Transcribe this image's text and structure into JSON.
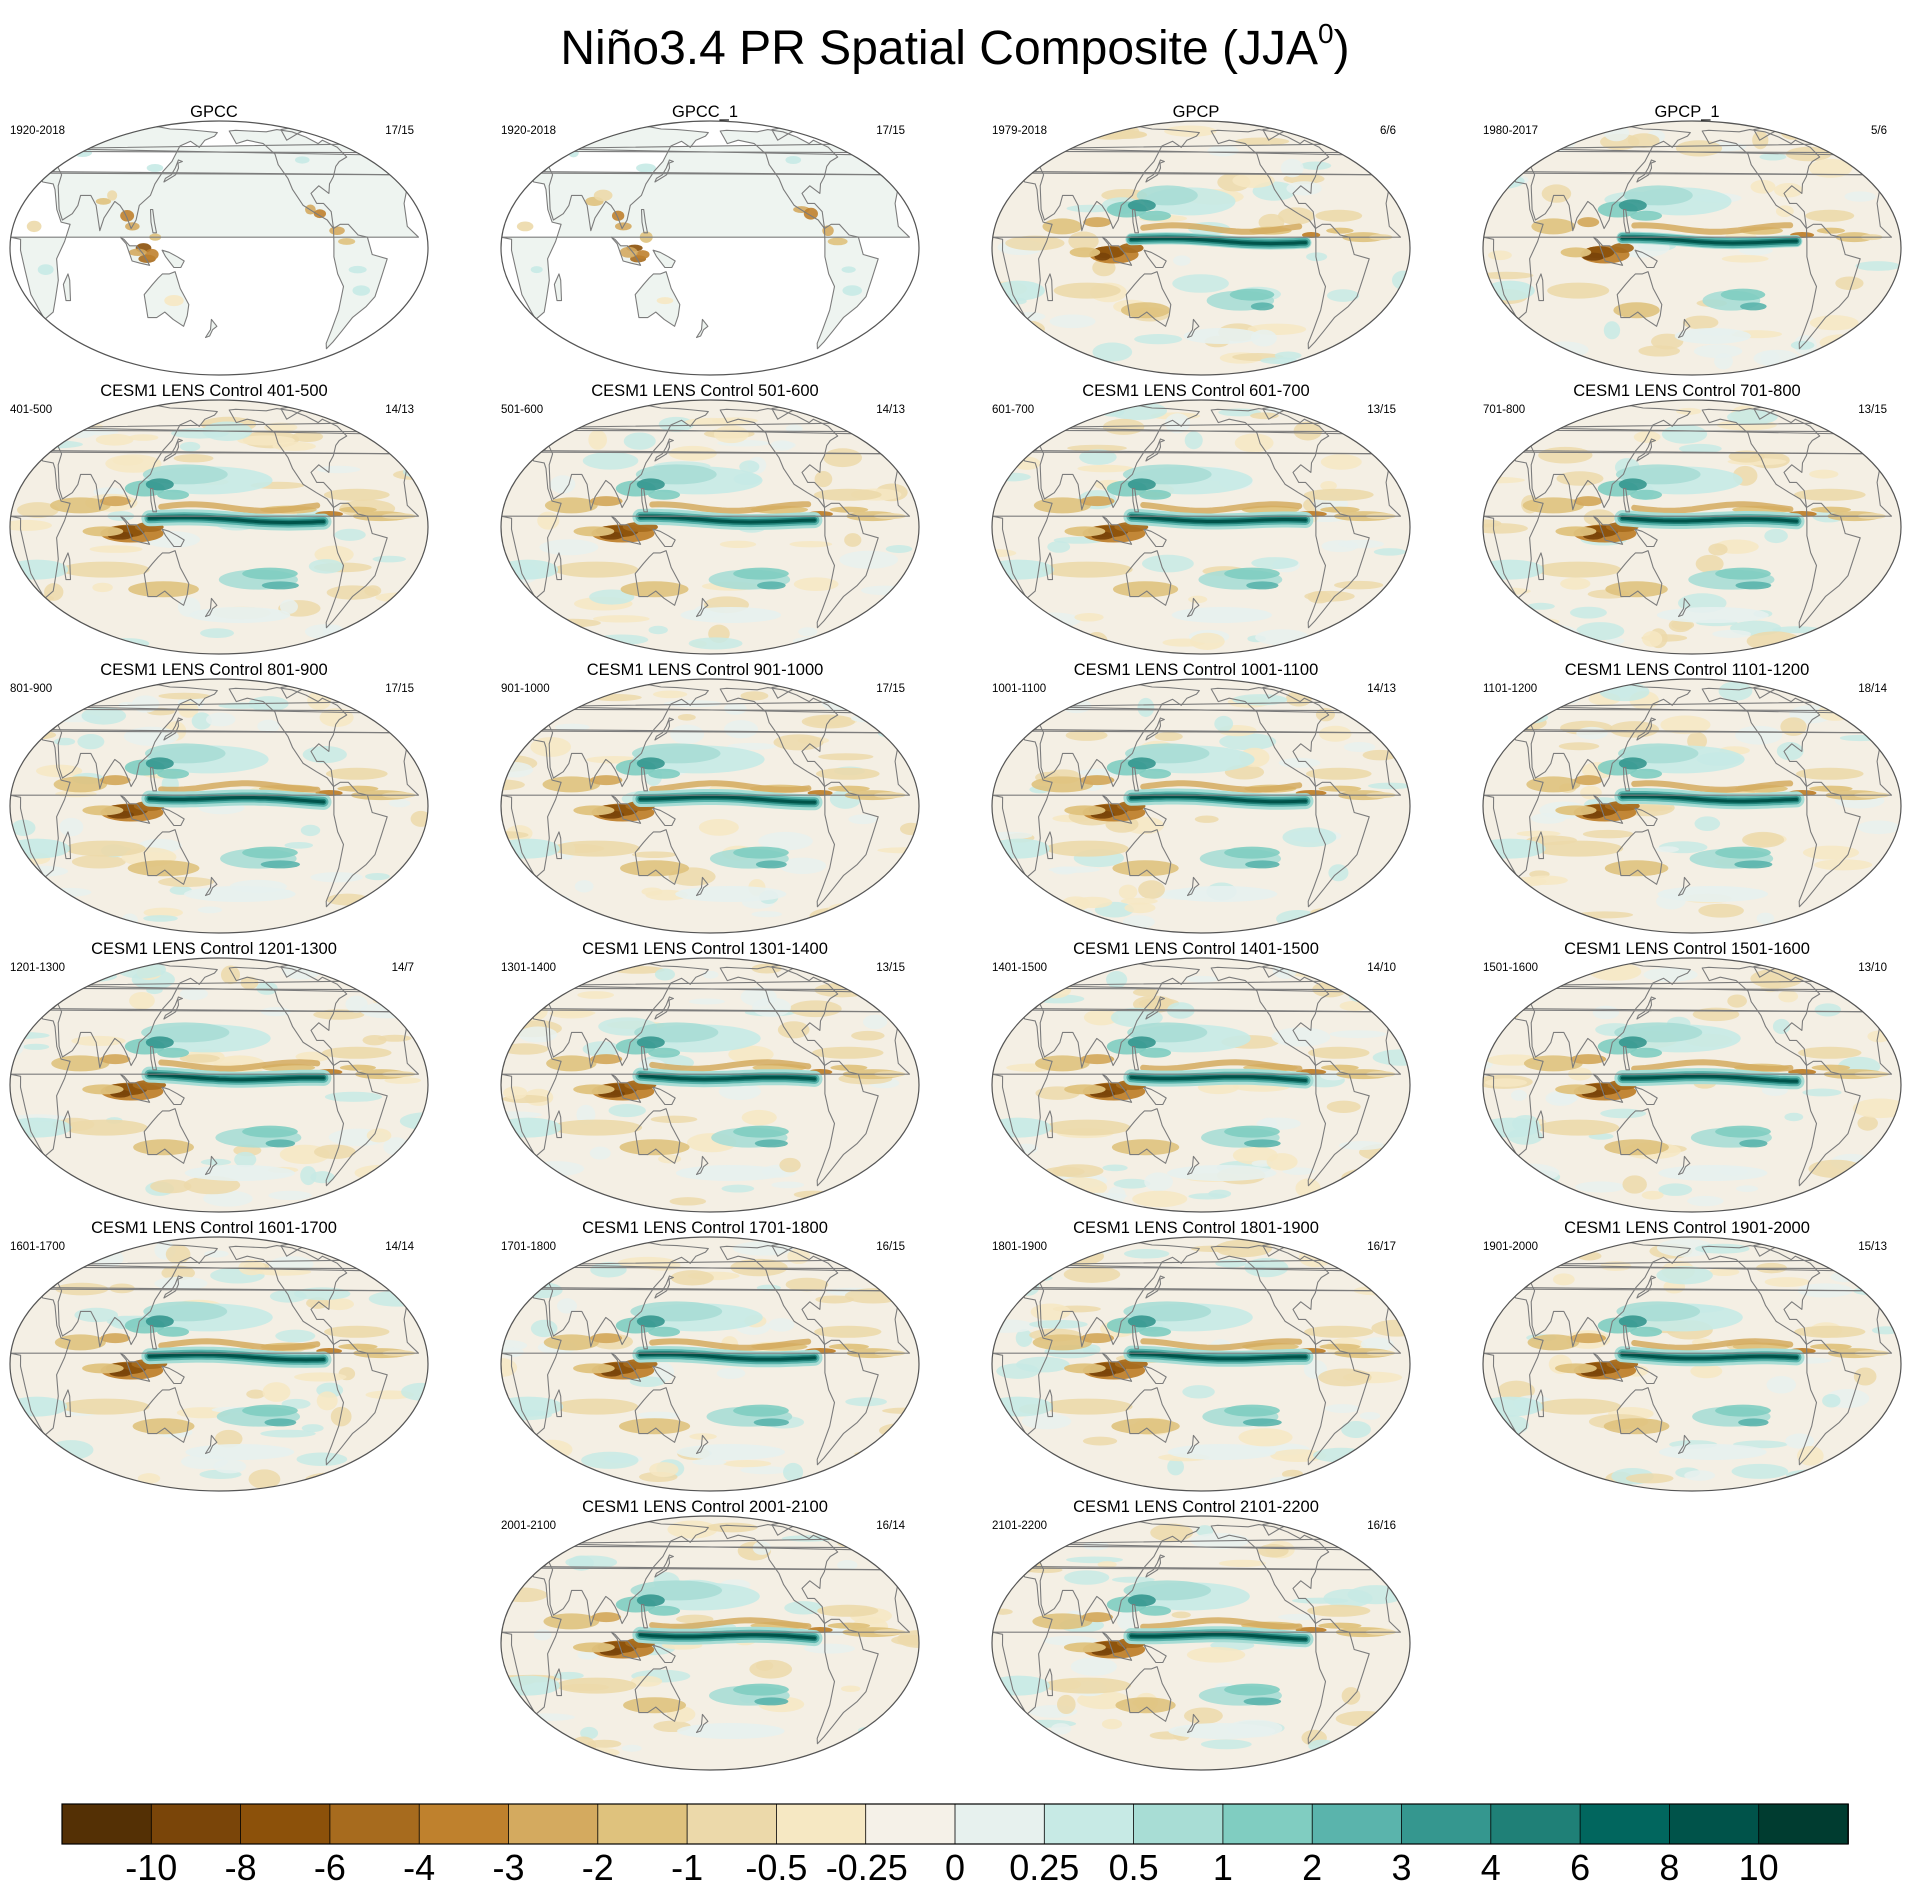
{
  "title": {
    "main": "Niño3.4 PR Spatial Composite (JJA",
    "sup": "0",
    "close": ")"
  },
  "colors": {
    "fill": [
      "#543005",
      "#7a4509",
      "#8c510a",
      "#a76b1e",
      "#bf812d",
      "#d4aa5f",
      "#dfc27d",
      "#ecd9aa",
      "#f6e8c3",
      "#f5f1e8",
      "#e7f1ee",
      "#c7eae5",
      "#a8ddd5",
      "#80cdc1",
      "#5ab4ac",
      "#35978f",
      "#1f8077",
      "#01665e",
      "#00534a",
      "#003c30"
    ],
    "ocean": "#f4efe4",
    "coast": "#7c7c7c"
  },
  "chart_data": {
    "type": "heatmap",
    "title": "Niño3.4 PR Spatial Composite (JJA⁰)",
    "colorbar": {
      "levels": [
        "-10",
        "-8",
        "-6",
        "-4",
        "-3",
        "-2",
        "-1",
        "-0.5",
        "-0.25",
        "0",
        "0.25",
        "0.5",
        "1",
        "2",
        "3",
        "4",
        "6",
        "8",
        "10"
      ],
      "n_colors": 20,
      "placement": "bottom"
    },
    "panels": [
      {
        "title": "GPCC",
        "period": "1920-2018",
        "count": "17/15",
        "kind": "land",
        "r": 0
      },
      {
        "title": "GPCC_1",
        "period": "1920-2018",
        "count": "17/15",
        "kind": "land",
        "r": 0
      },
      {
        "title": "GPCP",
        "period": "1979-2018",
        "count": "6/6",
        "kind": "obs",
        "r": 0
      },
      {
        "title": "GPCP_1",
        "period": "1980-2017",
        "count": "5/6",
        "kind": "obs",
        "r": 1
      },
      {
        "title": "CESM1 LENS Control 401-500",
        "period": "401-500",
        "count": "14/13",
        "kind": "model",
        "r": 0
      },
      {
        "title": "CESM1 LENS Control 501-600",
        "period": "501-600",
        "count": "14/13",
        "kind": "model",
        "r": 1
      },
      {
        "title": "CESM1 LENS Control 601-700",
        "period": "601-700",
        "count": "13/15",
        "kind": "model",
        "r": 2
      },
      {
        "title": "CESM1 LENS Control 701-800",
        "period": "701-800",
        "count": "13/15",
        "kind": "model",
        "r": 3
      },
      {
        "title": "CESM1 LENS Control 801-900",
        "period": "801-900",
        "count": "17/15",
        "kind": "model",
        "r": 4
      },
      {
        "title": "CESM1 LENS Control 901-1000",
        "period": "901-1000",
        "count": "17/15",
        "kind": "model",
        "r": 5
      },
      {
        "title": "CESM1 LENS Control 1001-1100",
        "period": "1001-1100",
        "count": "14/13",
        "kind": "model",
        "r": 6
      },
      {
        "title": "CESM1 LENS Control 1101-1200",
        "period": "1101-1200",
        "count": "18/14",
        "kind": "model",
        "r": 7
      },
      {
        "title": "CESM1 LENS Control 1201-1300",
        "period": "1201-1300",
        "count": "14/7",
        "kind": "model",
        "r": 8
      },
      {
        "title": "CESM1 LENS Control 1301-1400",
        "period": "1301-1400",
        "count": "13/15",
        "kind": "model",
        "r": 9
      },
      {
        "title": "CESM1 LENS Control 1401-1500",
        "period": "1401-1500",
        "count": "14/10",
        "kind": "model",
        "r": 10
      },
      {
        "title": "CESM1 LENS Control 1501-1600",
        "period": "1501-1600",
        "count": "13/10",
        "kind": "model",
        "r": 11
      },
      {
        "title": "CESM1 LENS Control 1601-1700",
        "period": "1601-1700",
        "count": "14/14",
        "kind": "model",
        "r": 12
      },
      {
        "title": "CESM1 LENS Control 1701-1800",
        "period": "1701-1800",
        "count": "16/15",
        "kind": "model",
        "r": 13
      },
      {
        "title": "CESM1 LENS Control 1801-1900",
        "period": "1801-1900",
        "count": "16/17",
        "kind": "model",
        "r": 14
      },
      {
        "title": "CESM1 LENS Control 1901-2000",
        "period": "1901-2000",
        "count": "15/13",
        "kind": "model",
        "r": 15
      },
      {
        "title": "CESM1 LENS Control 2001-2100",
        "period": "2001-2100",
        "count": "16/14",
        "kind": "model",
        "r": 16
      },
      {
        "title": "CESM1 LENS Control 2101-2200",
        "period": "2101-2200",
        "count": "16/16",
        "kind": "model",
        "r": 17
      }
    ]
  }
}
